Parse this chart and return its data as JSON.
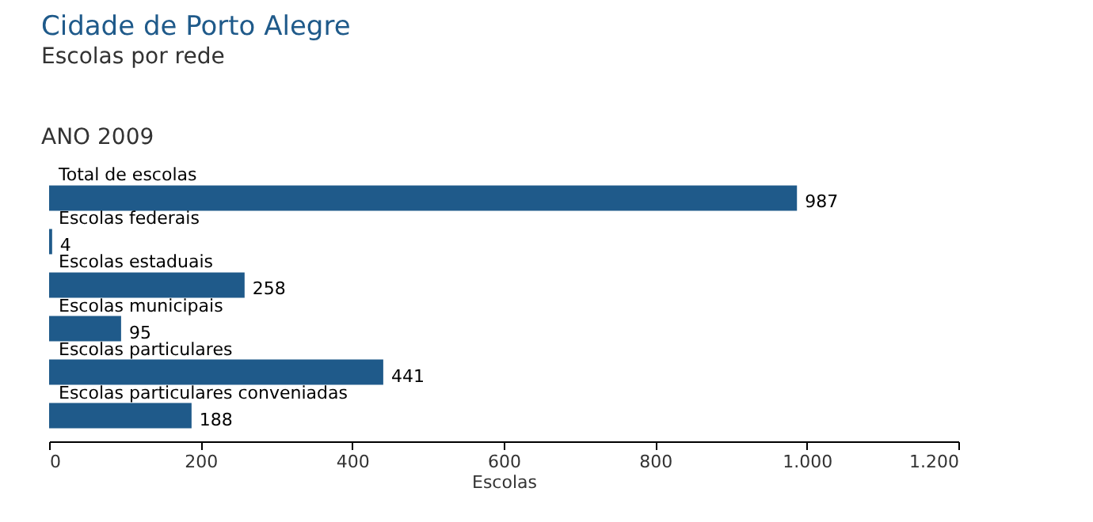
{
  "chart_data": {
    "type": "bar",
    "orientation": "horizontal",
    "title": "Cidade de Porto Alegre",
    "subtitle": "Escolas por rede",
    "annotations": [
      "ANO 2009"
    ],
    "categories": [
      "Total de escolas",
      "Escolas federais",
      "Escolas estaduais",
      "Escolas municipais",
      "Escolas particulares",
      "Escolas particulares conveniadas"
    ],
    "values": [
      987,
      4,
      258,
      95,
      441,
      188
    ],
    "color": "#1f5a8a",
    "xlabel": "Escolas",
    "xlim": [
      0,
      1200
    ],
    "xticks": [
      0,
      200,
      400,
      600,
      800,
      {
        "value": 1000,
        "label": "1.000"
      },
      {
        "value": 1200,
        "label": "1.200"
      }
    ],
    "data_labels": true,
    "grid": false
  }
}
